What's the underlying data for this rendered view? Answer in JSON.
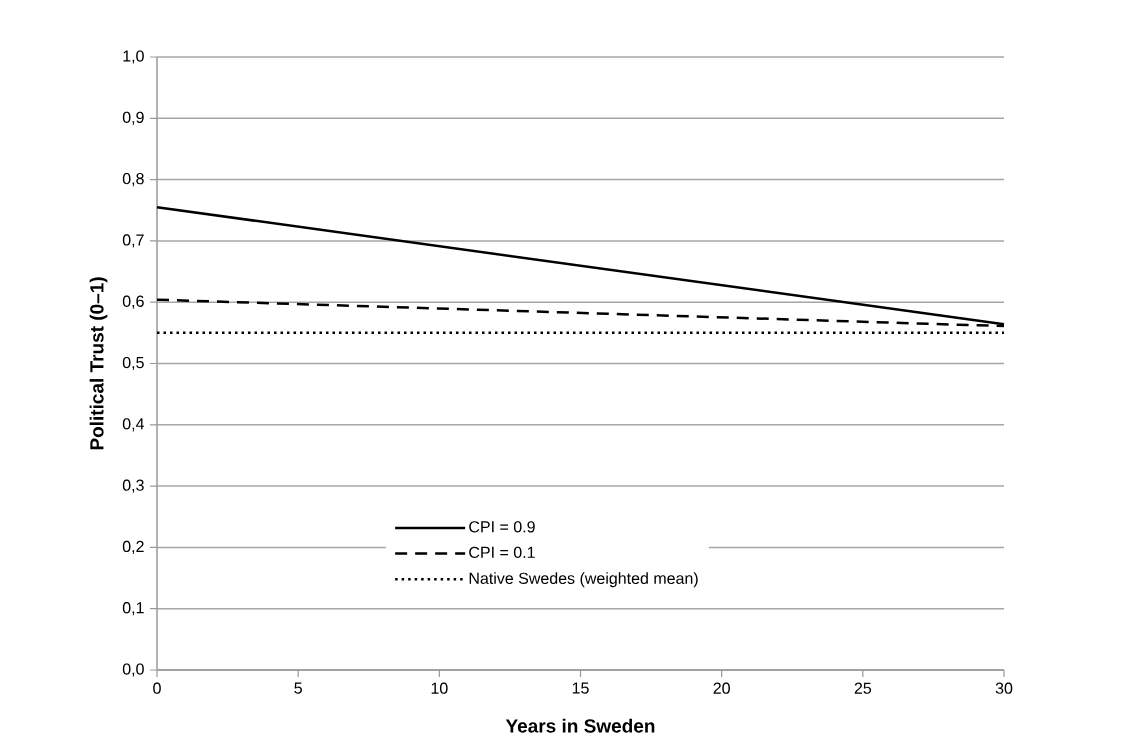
{
  "chart_data": {
    "type": "line",
    "xlabel": "Years in Sweden",
    "ylabel": "Political Trust (0–1)",
    "x": [
      0,
      30
    ],
    "series": [
      {
        "name": "CPI = 0.9",
        "color": "#000000",
        "line_style": "solid",
        "values": [
          0.755,
          0.564
        ]
      },
      {
        "name": "CPI = 0.1",
        "color": "#000000",
        "line_style": "dashed",
        "values": [
          0.604,
          0.561
        ]
      },
      {
        "name": "Native Swedes (weighted mean)",
        "color": "#000000",
        "line_style": "dotted",
        "values": [
          0.55,
          0.55
        ]
      }
    ],
    "xlim": [
      0,
      30
    ],
    "ylim": [
      0,
      1
    ],
    "xticks": [
      0,
      5,
      10,
      15,
      20,
      25,
      30
    ],
    "yticks": [
      {
        "value": 0,
        "label": "0,0"
      },
      {
        "value": 0.1,
        "label": "0,1"
      },
      {
        "value": 0.2,
        "label": "0,2"
      },
      {
        "value": 0.3,
        "label": "0,3"
      },
      {
        "value": 0.4,
        "label": "0,4"
      },
      {
        "value": 0.5,
        "label": "0,5"
      },
      {
        "value": 0.6,
        "label": "0,6"
      },
      {
        "value": 0.7,
        "label": "0,7"
      },
      {
        "value": 0.8,
        "label": "0,8"
      },
      {
        "value": 0.9,
        "label": "0,9"
      },
      {
        "value": 1.0,
        "label": "1,0"
      }
    ],
    "grid": "y",
    "legend": "bottom"
  }
}
